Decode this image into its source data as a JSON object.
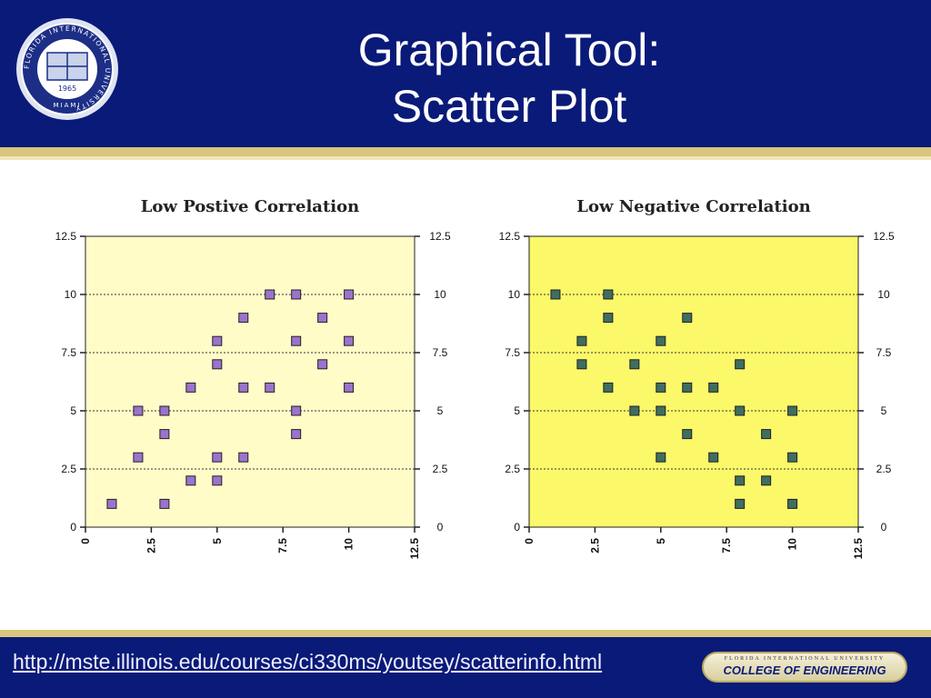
{
  "header": {
    "title_line1": "Graphical Tool:",
    "title_line2": "Scatter Plot",
    "logo_text": "FLORIDA INTERNATIONAL UNIVERSITY",
    "logo_city": "MIAMI",
    "logo_year": "1965"
  },
  "footer": {
    "link_text": "http://mste.illinois.edu/courses/ci330ms/youtsey/scatterinfo.html",
    "badge_top": "FLORIDA INTERNATIONAL UNIVERSITY",
    "badge_main": "COLLEGE OF ENGINEERING"
  },
  "colors": {
    "header_bg": "#0a1a78",
    "accent_stripe": "#d8c57e",
    "chart1_plot_bg": "#fffcc8",
    "chart2_plot_bg": "#fbf86a",
    "chart1_marker": "#9b73cc",
    "chart2_marker": "#3f6e60"
  },
  "chart_data": [
    {
      "type": "scatter",
      "title": "Low Postive Correlation",
      "xlim": [
        0,
        12.5
      ],
      "ylim": [
        0,
        12.5
      ],
      "xticks": [
        "0",
        "2.5",
        "5",
        "7.5",
        "10",
        "12.5"
      ],
      "yticks": [
        "0",
        "2.5",
        "5",
        "7.5",
        "10",
        "12.5"
      ],
      "grid": "dashed horizontal",
      "points": [
        [
          1,
          1
        ],
        [
          2,
          3
        ],
        [
          2,
          5
        ],
        [
          3,
          1
        ],
        [
          3,
          4
        ],
        [
          3,
          5
        ],
        [
          4,
          2
        ],
        [
          4,
          6
        ],
        [
          5,
          2
        ],
        [
          5,
          3
        ],
        [
          5,
          7
        ],
        [
          5,
          8
        ],
        [
          6,
          3
        ],
        [
          6,
          6
        ],
        [
          6,
          9
        ],
        [
          7,
          6
        ],
        [
          7,
          10
        ],
        [
          8,
          4
        ],
        [
          8,
          5
        ],
        [
          8,
          8
        ],
        [
          8,
          10
        ],
        [
          9,
          7
        ],
        [
          9,
          9
        ],
        [
          10,
          6
        ],
        [
          10,
          8
        ],
        [
          10,
          10
        ]
      ]
    },
    {
      "type": "scatter",
      "title": "Low Negative Correlation",
      "xlim": [
        0,
        12.5
      ],
      "ylim": [
        0,
        12.5
      ],
      "xticks": [
        "0",
        "2.5",
        "5",
        "7.5",
        "10",
        "12.5"
      ],
      "yticks": [
        "0",
        "2.5",
        "5",
        "7.5",
        "10",
        "12.5"
      ],
      "grid": "dashed horizontal",
      "points": [
        [
          1,
          10
        ],
        [
          2,
          7
        ],
        [
          2,
          8
        ],
        [
          3,
          6
        ],
        [
          3,
          9
        ],
        [
          3,
          10
        ],
        [
          4,
          5
        ],
        [
          4,
          7
        ],
        [
          5,
          3
        ],
        [
          5,
          5
        ],
        [
          5,
          6
        ],
        [
          5,
          8
        ],
        [
          6,
          4
        ],
        [
          6,
          6
        ],
        [
          6,
          9
        ],
        [
          7,
          3
        ],
        [
          7,
          6
        ],
        [
          8,
          1
        ],
        [
          8,
          2
        ],
        [
          8,
          5
        ],
        [
          8,
          7
        ],
        [
          9,
          2
        ],
        [
          9,
          4
        ],
        [
          10,
          1
        ],
        [
          10,
          3
        ],
        [
          10,
          5
        ]
      ]
    }
  ]
}
